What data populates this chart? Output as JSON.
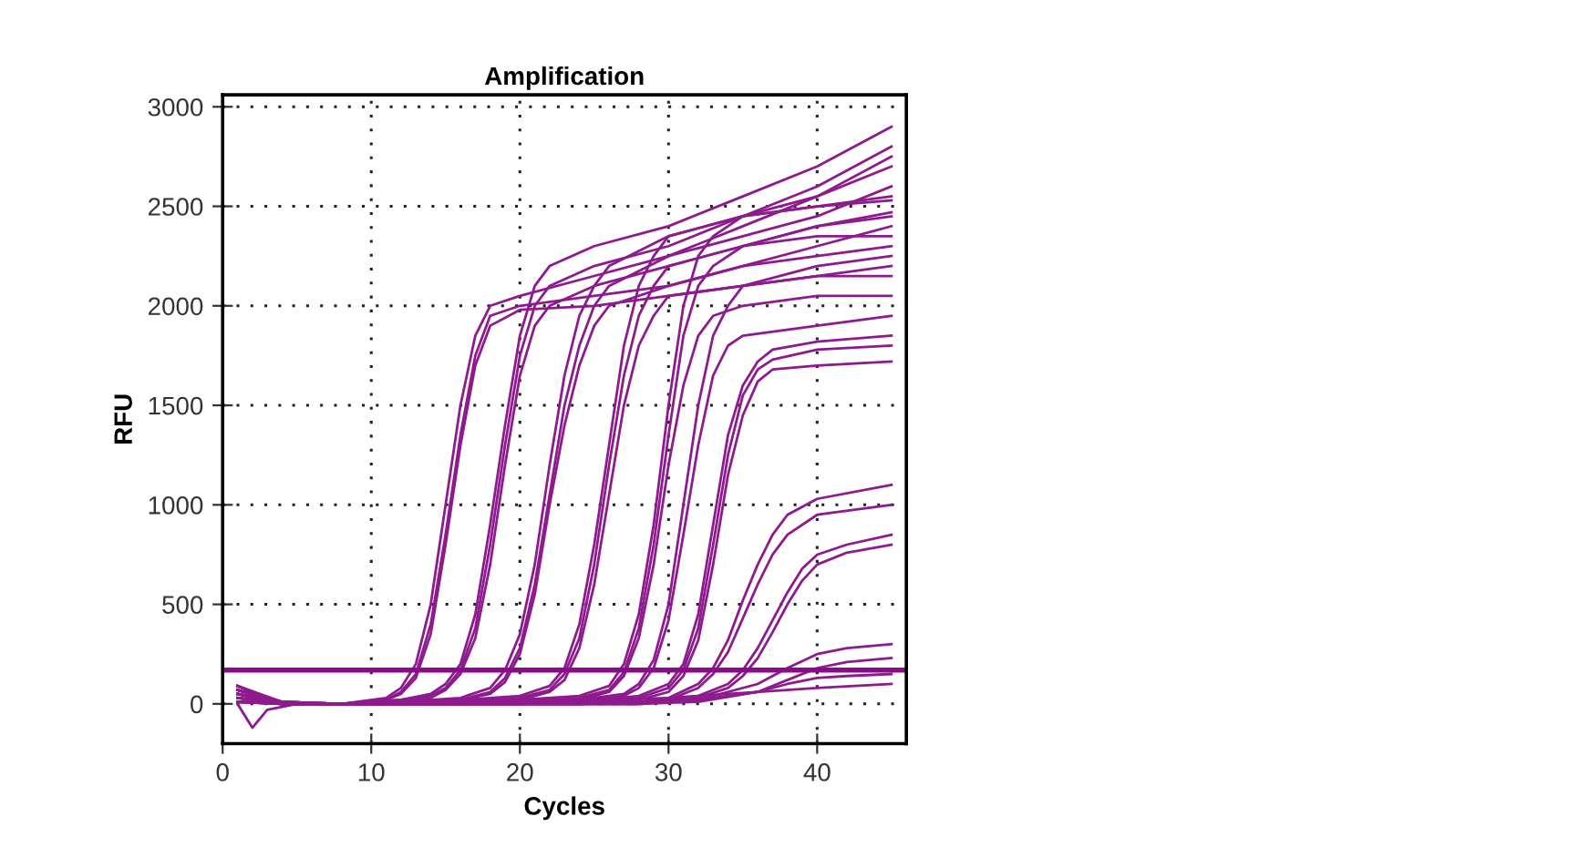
{
  "chart_data": {
    "type": "line",
    "title": "Amplification",
    "xlabel": "Cycles",
    "ylabel": "RFU",
    "xlim": [
      0,
      46
    ],
    "xticks": [
      0,
      10,
      20,
      30,
      40
    ],
    "ylim": [
      -200,
      3060
    ],
    "yticks": [
      0,
      500,
      1000,
      1500,
      2000,
      2500,
      3000
    ],
    "grid": true,
    "marker": "none",
    "line_style": "solid",
    "ref_lines": [
      {
        "axis": "y",
        "value": 170,
        "color": "#8b0a8b",
        "line_style": "solid"
      }
    ],
    "series": [
      {
        "color": "#8e1b8e",
        "x": [
          1,
          4,
          8,
          11,
          12,
          13,
          14,
          15,
          16,
          17,
          18,
          20,
          25,
          30,
          35,
          40,
          45
        ],
        "values": [
          30,
          10,
          0,
          30,
          80,
          200,
          500,
          1000,
          1500,
          1850,
          2000,
          2050,
          2150,
          2250,
          2400,
          2550,
          2700
        ]
      },
      {
        "color": "#8e1b8e",
        "x": [
          1,
          4,
          8,
          11,
          12,
          13,
          14,
          15,
          16,
          17,
          18,
          20,
          25,
          30,
          35,
          40,
          45
        ],
        "values": [
          70,
          10,
          0,
          20,
          60,
          150,
          400,
          850,
          1350,
          1750,
          1950,
          2000,
          2050,
          2100,
          2200,
          2300,
          2400
        ]
      },
      {
        "color": "#8e1b8e",
        "x": [
          1,
          4,
          8,
          11,
          12,
          13,
          14,
          15,
          16,
          17,
          18,
          20,
          25,
          30,
          35,
          40,
          45
        ],
        "values": [
          30,
          10,
          0,
          20,
          50,
          130,
          350,
          800,
          1300,
          1700,
          1900,
          1980,
          2000,
          2050,
          2100,
          2150,
          2200
        ]
      },
      {
        "color": "#8e1b8e",
        "x": [
          1,
          4,
          8,
          12,
          14,
          15,
          16,
          17,
          18,
          19,
          20,
          21,
          22,
          25,
          30,
          35,
          40,
          45
        ],
        "values": [
          10,
          10,
          0,
          20,
          50,
          100,
          200,
          450,
          900,
          1400,
          1850,
          2100,
          2200,
          2300,
          2400,
          2550,
          2700,
          2900
        ]
      },
      {
        "color": "#8e1b8e",
        "x": [
          1,
          4,
          8,
          12,
          14,
          15,
          16,
          17,
          18,
          19,
          20,
          21,
          22,
          25,
          30,
          35,
          40,
          45
        ],
        "values": [
          50,
          10,
          0,
          20,
          40,
          80,
          170,
          380,
          800,
          1300,
          1750,
          2000,
          2100,
          2200,
          2300,
          2450,
          2600,
          2800
        ]
      },
      {
        "color": "#8e1b8e",
        "x": [
          1,
          4,
          8,
          12,
          14,
          15,
          16,
          17,
          18,
          19,
          20,
          21,
          22,
          25,
          30,
          35,
          40,
          45
        ],
        "values": [
          90,
          0,
          0,
          10,
          30,
          70,
          150,
          330,
          700,
          1200,
          1650,
          1900,
          2000,
          2100,
          2200,
          2300,
          2400,
          2470
        ]
      },
      {
        "color": "#8e1b8e",
        "x": [
          1,
          4,
          8,
          12,
          16,
          18,
          19,
          20,
          21,
          22,
          23,
          24,
          25,
          26,
          30,
          35,
          40,
          45
        ],
        "values": [
          90,
          10,
          0,
          10,
          30,
          80,
          170,
          350,
          700,
          1200,
          1650,
          1950,
          2100,
          2200,
          2350,
          2450,
          2550,
          2750
        ]
      },
      {
        "color": "#8e1b8e",
        "x": [
          1,
          4,
          8,
          12,
          16,
          18,
          19,
          20,
          21,
          22,
          23,
          24,
          25,
          26,
          30,
          35,
          40,
          45
        ],
        "values": [
          70,
          0,
          0,
          10,
          20,
          60,
          130,
          280,
          600,
          1050,
          1500,
          1800,
          2000,
          2100,
          2250,
          2350,
          2450,
          2600
        ]
      },
      {
        "color": "#8e1b8e",
        "x": [
          1,
          4,
          8,
          12,
          16,
          18,
          19,
          20,
          21,
          22,
          23,
          24,
          25,
          26,
          30,
          35,
          40,
          45
        ],
        "values": [
          50,
          0,
          0,
          10,
          20,
          50,
          110,
          250,
          550,
          1000,
          1400,
          1700,
          1900,
          2000,
          2100,
          2200,
          2250,
          2300
        ]
      },
      {
        "color": "#8e1b8e",
        "x": [
          1,
          4,
          8,
          12,
          16,
          20,
          22,
          23,
          24,
          25,
          26,
          27,
          28,
          29,
          30,
          35,
          40,
          45
        ],
        "values": [
          10,
          0,
          0,
          10,
          20,
          40,
          90,
          180,
          400,
          800,
          1300,
          1800,
          2100,
          2250,
          2350,
          2450,
          2500,
          2550
        ]
      },
      {
        "color": "#8e1b8e",
        "x": [
          1,
          4,
          8,
          12,
          16,
          20,
          22,
          23,
          24,
          25,
          26,
          27,
          28,
          29,
          30,
          35,
          40,
          45
        ],
        "values": [
          30,
          0,
          0,
          10,
          10,
          30,
          70,
          150,
          330,
          700,
          1200,
          1650,
          1950,
          2100,
          2200,
          2300,
          2400,
          2450
        ]
      },
      {
        "color": "#8e1b8e",
        "x": [
          1,
          4,
          8,
          12,
          16,
          20,
          22,
          23,
          24,
          25,
          26,
          27,
          28,
          29,
          30,
          35,
          40,
          45
        ],
        "values": [
          70,
          0,
          0,
          0,
          10,
          20,
          60,
          120,
          280,
          600,
          1050,
          1500,
          1800,
          1950,
          2050,
          2100,
          2150,
          2150
        ]
      },
      {
        "color": "#8e1b8e",
        "x": [
          1,
          4,
          8,
          12,
          16,
          20,
          24,
          26,
          27,
          28,
          29,
          30,
          31,
          32,
          33,
          35,
          40,
          45
        ],
        "values": [
          50,
          0,
          0,
          0,
          10,
          20,
          40,
          90,
          200,
          450,
          900,
          1500,
          2000,
          2250,
          2350,
          2450,
          2500,
          2530
        ]
      },
      {
        "color": "#8e1b8e",
        "x": [
          1,
          4,
          8,
          12,
          16,
          20,
          24,
          26,
          27,
          28,
          29,
          30,
          31,
          32,
          33,
          35,
          40,
          45
        ],
        "values": [
          10,
          0,
          0,
          0,
          0,
          10,
          30,
          70,
          160,
          380,
          800,
          1350,
          1850,
          2100,
          2200,
          2300,
          2350,
          2350
        ]
      },
      {
        "color": "#8e1b8e",
        "x": [
          1,
          4,
          8,
          12,
          16,
          20,
          24,
          26,
          27,
          28,
          29,
          30,
          31,
          32,
          33,
          35,
          40,
          45
        ],
        "values": [
          10,
          0,
          0,
          0,
          0,
          10,
          20,
          60,
          140,
          330,
          700,
          1200,
          1600,
          1850,
          1950,
          2000,
          2050,
          2050
        ]
      },
      {
        "color": "#8e1b8e",
        "x": [
          1,
          4,
          8,
          12,
          16,
          20,
          24,
          27,
          28,
          29,
          30,
          31,
          32,
          33,
          34,
          35,
          40,
          45
        ],
        "values": [
          90,
          0,
          0,
          0,
          0,
          10,
          20,
          50,
          100,
          220,
          500,
          1000,
          1500,
          1850,
          2000,
          2100,
          2200,
          2250
        ]
      },
      {
        "color": "#8e1b8e",
        "x": [
          1,
          4,
          8,
          12,
          16,
          20,
          24,
          27,
          28,
          29,
          30,
          31,
          32,
          33,
          34,
          35,
          40,
          45
        ],
        "values": [
          50,
          0,
          0,
          0,
          0,
          0,
          20,
          40,
          80,
          180,
          420,
          850,
          1300,
          1650,
          1800,
          1850,
          1900,
          1950
        ]
      },
      {
        "color": "#8e1b8e",
        "x": [
          1,
          4,
          8,
          12,
          16,
          20,
          24,
          28,
          30,
          31,
          32,
          33,
          34,
          35,
          36,
          37,
          40,
          45
        ],
        "values": [
          90,
          0,
          0,
          0,
          0,
          0,
          10,
          40,
          100,
          200,
          450,
          900,
          1350,
          1600,
          1720,
          1780,
          1820,
          1850
        ]
      },
      {
        "color": "#8e1b8e",
        "x": [
          1,
          4,
          8,
          12,
          16,
          20,
          24,
          28,
          30,
          31,
          32,
          33,
          34,
          35,
          36,
          37,
          40,
          45
        ],
        "values": [
          30,
          0,
          0,
          0,
          0,
          0,
          10,
          30,
          80,
          170,
          380,
          800,
          1250,
          1550,
          1680,
          1730,
          1780,
          1800
        ]
      },
      {
        "color": "#8e1b8e",
        "x": [
          1,
          4,
          8,
          12,
          16,
          20,
          24,
          28,
          30,
          31,
          32,
          33,
          34,
          35,
          36,
          37,
          40,
          45
        ],
        "values": [
          70,
          0,
          0,
          0,
          0,
          0,
          0,
          20,
          60,
          140,
          320,
          700,
          1150,
          1450,
          1620,
          1680,
          1700,
          1720
        ]
      },
      {
        "color": "#8e1b8e",
        "x": [
          1,
          4,
          8,
          12,
          16,
          20,
          24,
          28,
          30,
          32,
          33,
          34,
          35,
          36,
          37,
          38,
          40,
          45
        ],
        "values": [
          10,
          0,
          0,
          0,
          0,
          0,
          0,
          10,
          30,
          100,
          180,
          320,
          520,
          700,
          850,
          950,
          1030,
          1100
        ]
      },
      {
        "color": "#8e1b8e",
        "x": [
          1,
          4,
          8,
          12,
          16,
          20,
          24,
          28,
          30,
          32,
          33,
          34,
          35,
          36,
          37,
          38,
          40,
          45
        ],
        "values": [
          50,
          0,
          0,
          0,
          0,
          0,
          0,
          10,
          20,
          80,
          150,
          260,
          430,
          600,
          750,
          850,
          950,
          1000
        ]
      },
      {
        "color": "#8e1b8e",
        "x": [
          1,
          4,
          8,
          12,
          16,
          20,
          24,
          28,
          32,
          34,
          35,
          36,
          37,
          38,
          39,
          40,
          42,
          45
        ],
        "values": [
          90,
          0,
          0,
          0,
          0,
          0,
          0,
          0,
          40,
          100,
          170,
          280,
          420,
          560,
          680,
          750,
          800,
          850
        ]
      },
      {
        "color": "#8e1b8e",
        "x": [
          1,
          4,
          8,
          12,
          16,
          20,
          24,
          28,
          32,
          34,
          35,
          36,
          37,
          38,
          39,
          40,
          42,
          45
        ],
        "values": [
          30,
          0,
          0,
          0,
          0,
          0,
          0,
          0,
          30,
          80,
          140,
          230,
          360,
          500,
          620,
          700,
          760,
          800
        ]
      },
      {
        "color": "#8e1b8e",
        "x": [
          1,
          4,
          8,
          12,
          16,
          20,
          24,
          28,
          32,
          36,
          38,
          40,
          42,
          45
        ],
        "values": [
          70,
          0,
          0,
          0,
          0,
          0,
          0,
          0,
          20,
          100,
          180,
          250,
          280,
          300
        ]
      },
      {
        "color": "#8e1b8e",
        "x": [
          1,
          4,
          8,
          12,
          16,
          20,
          24,
          28,
          32,
          36,
          38,
          40,
          42,
          45
        ],
        "values": [
          10,
          0,
          0,
          0,
          0,
          0,
          0,
          0,
          10,
          60,
          120,
          180,
          210,
          230
        ]
      },
      {
        "color": "#8e1b8e",
        "x": [
          1,
          4,
          8,
          12,
          16,
          20,
          24,
          28,
          32,
          36,
          38,
          40,
          42,
          45
        ],
        "values": [
          50,
          0,
          0,
          0,
          0,
          0,
          0,
          10,
          20,
          60,
          100,
          130,
          140,
          150
        ]
      },
      {
        "color": "#8e1b8e",
        "x": [
          1,
          2,
          3,
          5,
          10,
          20,
          30,
          40,
          45
        ],
        "values": [
          0,
          -120,
          -30,
          0,
          0,
          10,
          30,
          80,
          100
        ]
      }
    ]
  }
}
